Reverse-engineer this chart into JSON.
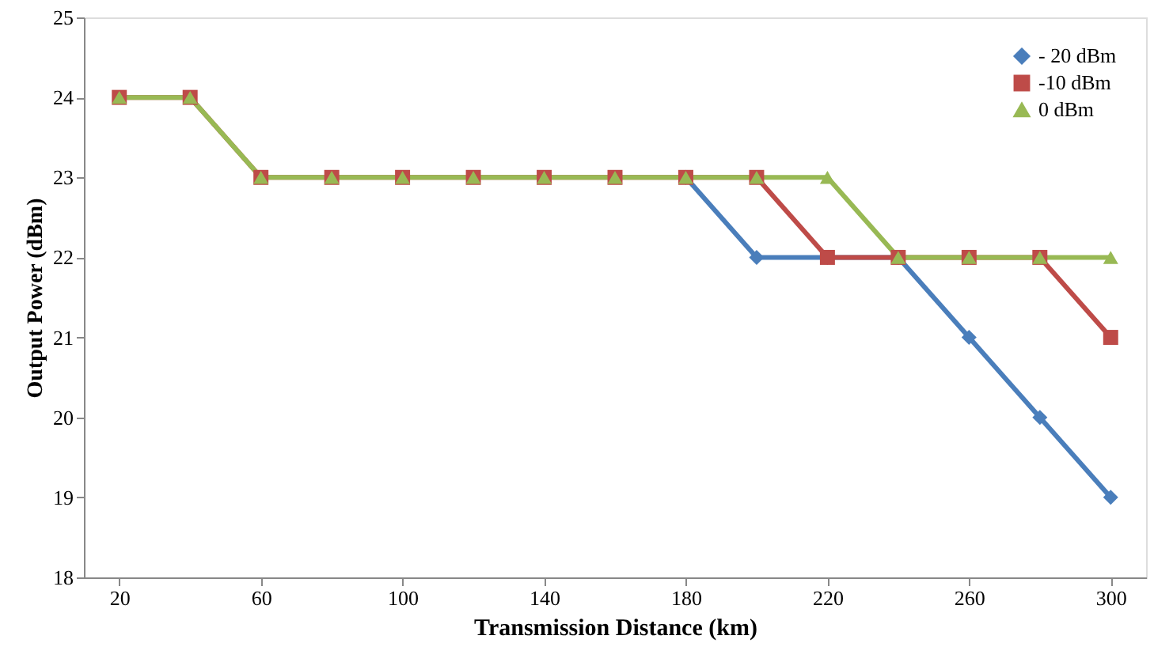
{
  "chart_data": {
    "type": "line",
    "xlabel": "Transmission Distance (km)",
    "ylabel": "Output Power (dBm)",
    "x": [
      20,
      40,
      60,
      80,
      100,
      120,
      140,
      160,
      180,
      200,
      220,
      240,
      260,
      280,
      300
    ],
    "xlim": [
      10,
      310
    ],
    "xticks": [
      20,
      60,
      100,
      140,
      180,
      220,
      260,
      300
    ],
    "ylim": [
      18,
      25
    ],
    "yticks": [
      18,
      19,
      20,
      21,
      22,
      23,
      24,
      25
    ],
    "grid": false,
    "legend": "top right",
    "line_style": "solid",
    "series": [
      {
        "name": "- 20 dBm",
        "color": "#4a7ebb",
        "marker": "diamond",
        "values": [
          null,
          null,
          null,
          null,
          null,
          null,
          null,
          null,
          23,
          22,
          22,
          22,
          21,
          20,
          19
        ]
      },
      {
        "name": "-10 dBm",
        "color": "#be4b48",
        "marker": "square",
        "values": [
          24,
          24,
          23,
          23,
          23,
          23,
          23,
          23,
          23,
          23,
          22,
          22,
          22,
          22,
          21
        ]
      },
      {
        "name": "0 dBm",
        "color": "#98b954",
        "marker": "triangle",
        "values": [
          24,
          24,
          23,
          23,
          23,
          23,
          23,
          23,
          23,
          23,
          23,
          22,
          22,
          22,
          22
        ]
      }
    ]
  }
}
